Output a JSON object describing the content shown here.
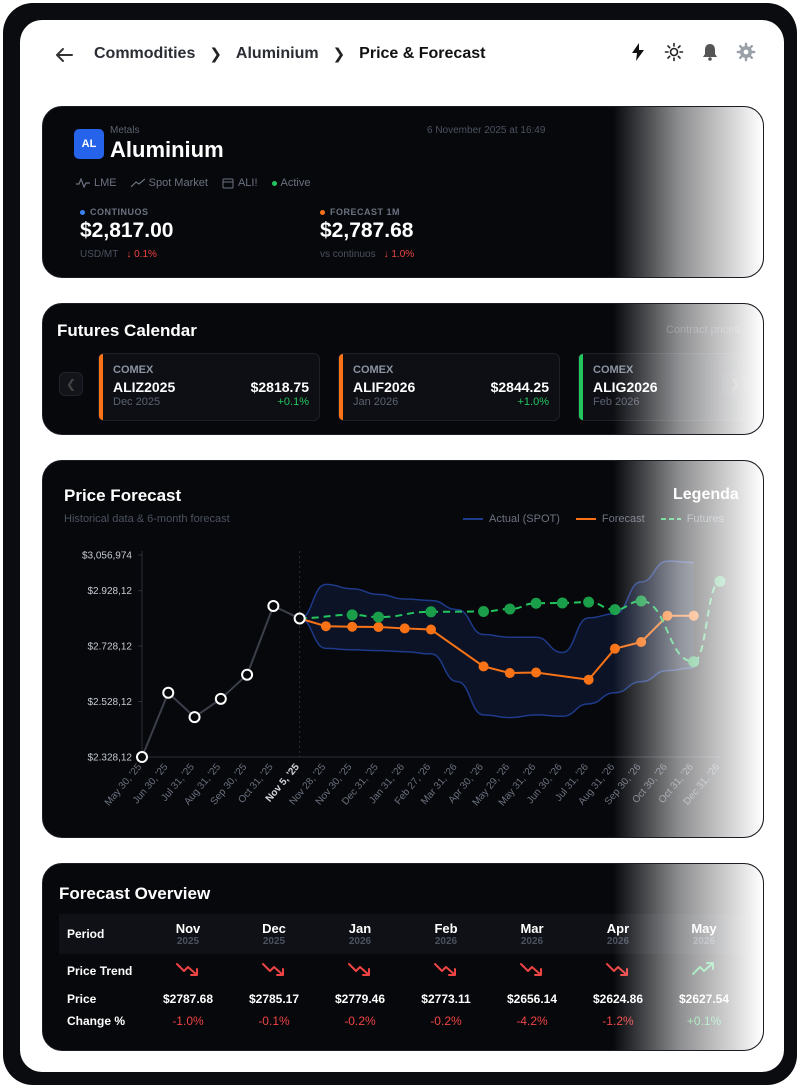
{
  "breadcrumb": [
    "Commodities",
    "Aluminium",
    "Price & Forecast"
  ],
  "header": {
    "badge": "AL",
    "category": "Metals",
    "title": "Aluminium",
    "timestamp": "6 November 2025 at 16:49",
    "tags": [
      "LME",
      "Spot Market",
      "ALI!",
      "Active"
    ],
    "continuous": {
      "label": "CONTINUOS",
      "value": "$2,817.00",
      "unit": "USD/MT",
      "change": "0.1%"
    },
    "forecast": {
      "label": "FORECAST 1M",
      "value": "$2,787.68",
      "compare": "vs continuos",
      "change": "1.0%"
    }
  },
  "futures": {
    "title": "Futures Calendar",
    "note": "Contract prices",
    "items": [
      {
        "exchange": "COMEX",
        "symbol": "ALIZ2025",
        "expiry": "Dec 2025",
        "price": "$2818.75",
        "change": "+0.1%",
        "color": "#f97316"
      },
      {
        "exchange": "COMEX",
        "symbol": "ALIF2026",
        "expiry": "Jan 2026",
        "price": "$2844.25",
        "change": "+1.0%",
        "color": "#f97316"
      },
      {
        "exchange": "COMEX",
        "symbol": "ALIG2026",
        "expiry": "Feb 2026",
        "price": "",
        "change": "",
        "color": "#22c55e"
      }
    ]
  },
  "forecast_chart": {
    "title": "Price Forecast",
    "subtitle": "Historical data & 6-month forecast",
    "legend_title": "Legenda",
    "legend": [
      {
        "label": "Actual (SPOT)",
        "color": "#1e3a8a"
      },
      {
        "label": "Forecast",
        "color": "#f97316"
      },
      {
        "label": "Futures",
        "color": "#22c55e"
      }
    ]
  },
  "chart_data": {
    "type": "line",
    "title": "Price Forecast",
    "subtitle": "Historical data & 6-month forecast",
    "y_ticks": [
      "$3,056,974",
      "$2.928,12",
      "$2.728,12",
      "$2.528,12",
      "$2.328,12"
    ],
    "ylim": [
      2328.12,
      3056.974
    ],
    "x_ticks": [
      "May 30, '25",
      "Jun 30, '25",
      "Jul 31, '25",
      "Aug 31, '25",
      "Sep 30, '25",
      "Oct 31, '25",
      "Nov 5, '25",
      "Nov 28, '25",
      "Nov 30, '25",
      "Dec 31, '25",
      "Jan 31, '26",
      "Feb 27, '26",
      "Mar 31, '26",
      "Apr 30, '26",
      "May 29, '26",
      "May 31, '26",
      "Jun 30, '26",
      "Jul 31, '26",
      "Aug 31, '26",
      "Sep 30, '26",
      "Oct 30, '26",
      "Oct 31, '26",
      "Dec 31, '26"
    ],
    "series": [
      {
        "name": "Actual (SPOT)",
        "color": "#ffffff",
        "x": [
          0,
          1,
          2,
          3,
          4,
          5,
          6
        ],
        "values": [
          2328,
          2560,
          2472,
          2538,
          2625,
          2873,
          2828
        ]
      },
      {
        "name": "Forecast",
        "color": "#f97316",
        "x": [
          6,
          7,
          8,
          9,
          10,
          11,
          13,
          14,
          15,
          17,
          18,
          19,
          20,
          21
        ],
        "values": [
          2828,
          2800,
          2798,
          2797,
          2792,
          2788,
          2655,
          2631,
          2633,
          2607,
          2719,
          2743,
          2838,
          2838
        ]
      },
      {
        "name": "Futures",
        "color": "#22c55e",
        "x": [
          6,
          8,
          9,
          11,
          13,
          14,
          15,
          16,
          17,
          18,
          19,
          21,
          22
        ],
        "values": [
          2829,
          2841,
          2833,
          2852,
          2853,
          2862,
          2883,
          2884,
          2887,
          2860,
          2891,
          2672,
          2962
        ]
      },
      {
        "name": "Upper band",
        "color": "#1e3a8a",
        "x": [
          6,
          7,
          8,
          9,
          10,
          11,
          12,
          13,
          14,
          15,
          16,
          17,
          18,
          19,
          20,
          21
        ],
        "values": [
          2828,
          2951,
          2935,
          2915,
          2898,
          2893,
          2860,
          2770,
          2760,
          2760,
          2705,
          2830,
          2845,
          2960,
          3035,
          3030
        ]
      },
      {
        "name": "Lower band",
        "color": "#1e3a8a",
        "x": [
          6,
          7,
          8,
          9,
          10,
          11,
          12,
          13,
          14,
          15,
          16,
          17,
          18,
          19,
          20,
          21
        ],
        "values": [
          2828,
          2720,
          2715,
          2712,
          2708,
          2700,
          2600,
          2480,
          2470,
          2480,
          2475,
          2520,
          2560,
          2600,
          2640,
          2650
        ]
      }
    ]
  },
  "overview": {
    "title": "Forecast Overview",
    "row_labels": {
      "period": "Period",
      "trend": "Price Trend",
      "price": "Price",
      "change": "Change %"
    },
    "periods": [
      {
        "month": "Nov",
        "year": "2025",
        "trend": "down",
        "price": "$2787.68",
        "change": "-1.0%"
      },
      {
        "month": "Dec",
        "year": "2025",
        "trend": "down",
        "price": "$2785.17",
        "change": "-0.1%"
      },
      {
        "month": "Jan",
        "year": "2026",
        "trend": "down",
        "price": "$2779.46",
        "change": "-0.2%"
      },
      {
        "month": "Feb",
        "year": "2026",
        "trend": "down",
        "price": "$2773.11",
        "change": "-0.2%"
      },
      {
        "month": "Mar",
        "year": "2026",
        "trend": "down",
        "price": "$2656.14",
        "change": "-4.2%"
      },
      {
        "month": "Apr",
        "year": "2026",
        "trend": "down",
        "price": "$2624.86",
        "change": "-1.2%"
      },
      {
        "month": "May",
        "year": "2026",
        "trend": "up",
        "price": "$2627.54",
        "change": "+0.1%"
      }
    ]
  }
}
